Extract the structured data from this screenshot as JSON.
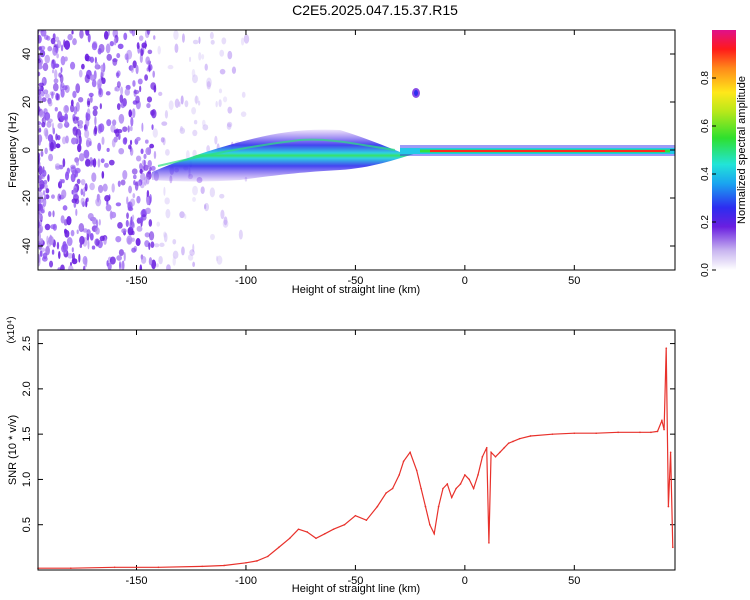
{
  "title": "C2E5.2025.047.15.37.R15",
  "chart_data": [
    {
      "type": "heatmap",
      "title": "C2E5.2025.047.15.37.R15",
      "xlabel": "Height of straight line (km)",
      "ylabel": "Frequency (Hz)",
      "xlim": [
        -195,
        96
      ],
      "ylim": [
        -50,
        50
      ],
      "x_ticks": [
        -150,
        -100,
        -50,
        0,
        50
      ],
      "y_ticks": [
        -40,
        -20,
        0,
        20,
        40
      ],
      "colorbar": {
        "label": "Normalized spectral amplitude",
        "range": [
          0.0,
          1.0
        ],
        "ticks": [
          0.0,
          0.2,
          0.4,
          0.6,
          0.8
        ]
      },
      "grid": false
    },
    {
      "type": "line",
      "xlabel": "Height of straight line (km)",
      "ylabel": "SNR (10 * v/v)",
      "y_multiplier": "(x10⁴)",
      "xlim": [
        -195,
        96
      ],
      "ylim": [
        0,
        2.65
      ],
      "x_ticks": [
        -150,
        -100,
        -50,
        0,
        50
      ],
      "y_ticks": [
        0.5,
        1.0,
        1.5,
        2.0,
        2.5
      ],
      "series": [
        {
          "color": "#e8312b",
          "x": [
            -195,
            -180,
            -160,
            -140,
            -120,
            -110,
            -100,
            -95,
            -90,
            -85,
            -80,
            -76,
            -72,
            -68,
            -64,
            -60,
            -55,
            -50,
            -45,
            -40,
            -36,
            -33,
            -30,
            -28,
            -25,
            -22,
            -20,
            -18,
            -16,
            -14,
            -12,
            -10,
            -8,
            -6,
            -4,
            -2,
            0,
            2,
            4,
            6,
            8,
            10,
            11,
            12,
            14,
            16,
            18,
            20,
            22,
            25,
            30,
            40,
            50,
            60,
            70,
            80,
            85,
            88,
            90,
            91,
            92,
            93,
            94,
            95
          ],
          "y": [
            0.02,
            0.02,
            0.03,
            0.03,
            0.04,
            0.05,
            0.08,
            0.1,
            0.15,
            0.25,
            0.35,
            0.45,
            0.42,
            0.35,
            0.4,
            0.45,
            0.5,
            0.6,
            0.55,
            0.7,
            0.85,
            0.9,
            1.05,
            1.2,
            1.3,
            1.1,
            0.9,
            0.7,
            0.5,
            0.4,
            0.7,
            0.9,
            0.95,
            0.8,
            0.9,
            0.95,
            1.05,
            1.0,
            0.9,
            1.05,
            1.25,
            1.35,
            0.3,
            1.3,
            1.25,
            1.3,
            1.35,
            1.4,
            1.42,
            1.45,
            1.48,
            1.5,
            1.51,
            1.51,
            1.52,
            1.52,
            1.52,
            1.53,
            1.65,
            1.55,
            2.45,
            0.7,
            1.3,
            0.25
          ]
        }
      ]
    }
  ]
}
